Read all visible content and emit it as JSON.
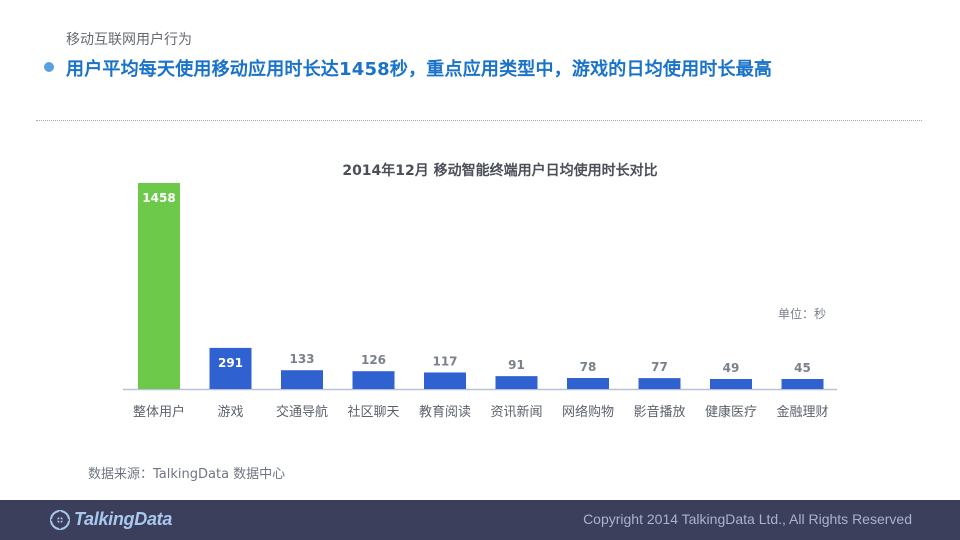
{
  "header": {
    "subtitle": "移动互联网用户行为",
    "headline": "用户平均每天使用移动应用时长达1458秒，重点应用类型中，游戏的日均使用时长最高"
  },
  "colors": {
    "highlight_bar": "#6cc94a",
    "bar": "#2f62d0",
    "axis": "#b7c2d6",
    "headline": "#1a73c9"
  },
  "chart_data": {
    "type": "bar",
    "title": "2014年12月 移动智能终端用户日均使用时长对比",
    "unit_label": "单位：秒",
    "categories": [
      "整体用户",
      "游戏",
      "交通导航",
      "社区聊天",
      "教育阅读",
      "资讯新闻",
      "网络购物",
      "影音播放",
      "健康医疗",
      "金融理财"
    ],
    "values": [
      1458,
      291,
      133,
      126,
      117,
      91,
      78,
      77,
      49,
      45
    ],
    "highlight_index": 0,
    "xlabel": "",
    "ylabel": "",
    "ylim": [
      0,
      1458
    ],
    "grid": false,
    "legend": "none"
  },
  "source": "数据来源：TalkingData 数据中心",
  "footer": {
    "logo_text": "TalkingData",
    "logo_icon": "talkingdata-logo-icon",
    "copyright": "Copyright 2014 TalkingData Ltd., All Rights Reserved"
  }
}
